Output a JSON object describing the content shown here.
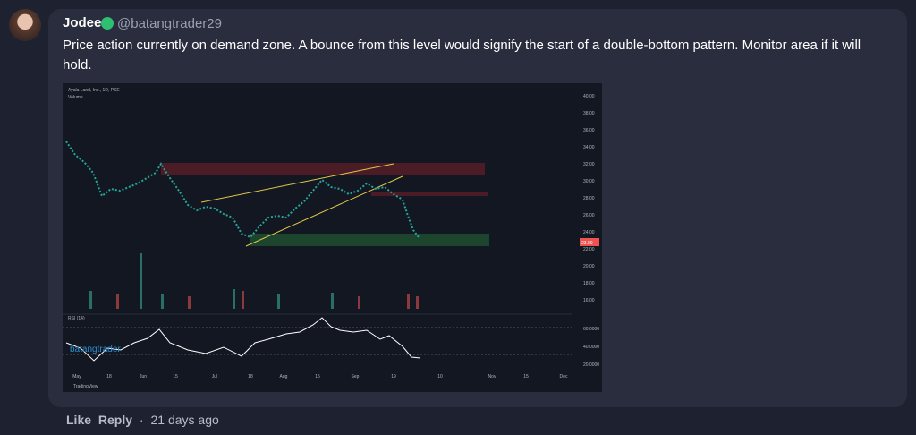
{
  "comment": {
    "author": "Jodee",
    "handle": "@batangtrader29",
    "text": "Price action currently on demand zone. A bounce from this level would signify the start of a double-bottom pattern. Monitor area if it will hold."
  },
  "attachment": {
    "symbol": "Ayala Land, Inc., 1D, PSE",
    "volume_label": "Volume",
    "last_price": "23.80",
    "price_ticks": [
      "40.00",
      "38.00",
      "36.00",
      "34.00",
      "32.00",
      "30.00",
      "28.00",
      "26.00",
      "24.00",
      "22.00",
      "20.00",
      "18.00",
      "16.00"
    ],
    "rsi_label": "RSI (14)",
    "rsi_ticks": [
      "60.0000",
      "40.0000",
      "20.0000"
    ],
    "x_labels": [
      "May",
      "18",
      "Jun",
      "15",
      "Jul",
      "18",
      "Aug",
      "15",
      "Sep",
      "19",
      "10",
      "Nov",
      "15",
      "Dec"
    ],
    "watermark_user": "batangtrader",
    "watermark": "TradingView"
  },
  "actions": {
    "like": "Like",
    "reply": "Reply",
    "separator": "·",
    "time": "21 days ago"
  }
}
